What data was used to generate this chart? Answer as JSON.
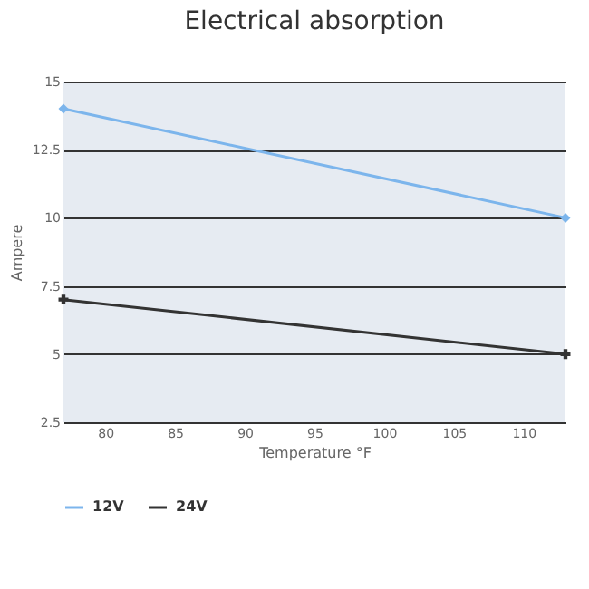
{
  "chart_data": {
    "type": "line",
    "title": "Electrical absorption",
    "xlabel": "Temperature °F",
    "ylabel": "Ampere",
    "x": [
      77,
      113
    ],
    "xlim": [
      77,
      113
    ],
    "xticks": [
      80,
      85,
      90,
      95,
      100,
      105,
      110
    ],
    "ylim": [
      2.5,
      15
    ],
    "yticks": [
      2.5,
      5,
      7.5,
      10,
      12.5,
      15
    ],
    "series": [
      {
        "name": "12V",
        "color": "#7cb5ec",
        "marker": "diamond",
        "values": [
          14,
          10
        ]
      },
      {
        "name": "24V",
        "color": "#333333",
        "marker": "cross",
        "values": [
          7,
          5
        ]
      }
    ],
    "grid": "y",
    "legend": "bottom",
    "line_style": "solid"
  }
}
